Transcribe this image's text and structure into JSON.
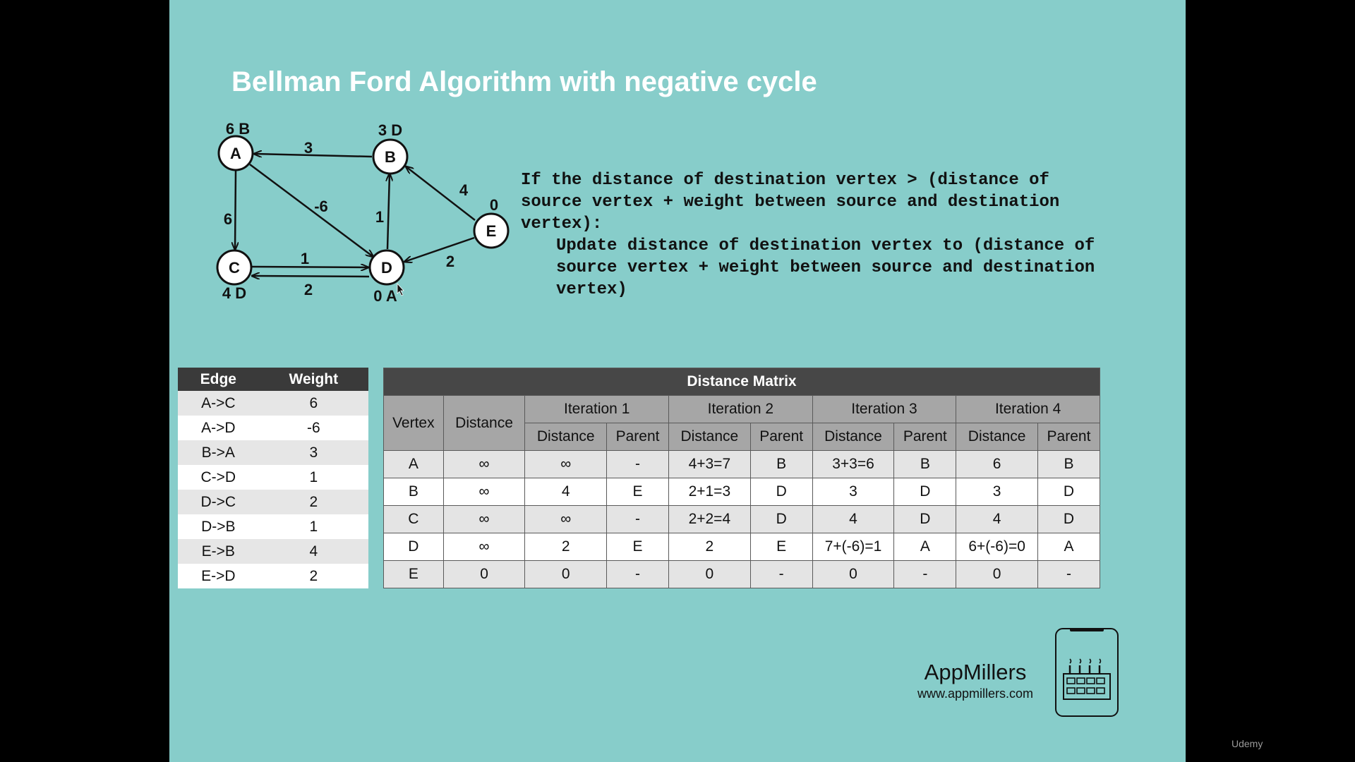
{
  "title": "Bellman Ford Algorithm with negative cycle",
  "graph": {
    "nodes": [
      {
        "id": "A",
        "label": "A",
        "annotation": "6 B"
      },
      {
        "id": "B",
        "label": "B",
        "annotation": "3 D"
      },
      {
        "id": "C",
        "label": "C",
        "annotation": "4 D"
      },
      {
        "id": "D",
        "label": "D",
        "annotation": "0 A"
      },
      {
        "id": "E",
        "label": "E",
        "annotation": "0"
      }
    ],
    "edges": [
      {
        "from": "B",
        "to": "A",
        "weight": "3"
      },
      {
        "from": "A",
        "to": "C",
        "weight": "6"
      },
      {
        "from": "A",
        "to": "D",
        "weight": "-6"
      },
      {
        "from": "D",
        "to": "B",
        "weight": "1"
      },
      {
        "from": "E",
        "to": "B",
        "weight": "4"
      },
      {
        "from": "E",
        "to": "D",
        "weight": "2"
      },
      {
        "from": "C",
        "to": "D",
        "weight": "1"
      },
      {
        "from": "D",
        "to": "C",
        "weight": "2"
      }
    ]
  },
  "rule": {
    "line1": "If the distance of destination vertex > (distance of",
    "line2": "source vertex + weight between source and destination",
    "line3": "vertex):",
    "line4": "Update distance of destination vertex to (distance of",
    "line5": "source vertex + weight between source and destination",
    "line6": "vertex)"
  },
  "edge_table": {
    "headers": [
      "Edge",
      "Weight"
    ],
    "rows": [
      [
        "A->C",
        "6"
      ],
      [
        "A->D",
        "-6"
      ],
      [
        "B->A",
        "3"
      ],
      [
        "C->D",
        "1"
      ],
      [
        "D->C",
        "2"
      ],
      [
        "D->B",
        "1"
      ],
      [
        "E->B",
        "4"
      ],
      [
        "E->D",
        "2"
      ]
    ]
  },
  "matrix": {
    "title": "Distance Matrix",
    "vertex_header": "Vertex",
    "distance_header": "Distance",
    "iterations": [
      "Iteration 1",
      "Iteration 2",
      "Iteration 3",
      "Iteration 4"
    ],
    "sub_distance": "Distance",
    "sub_parent": "Parent",
    "rows": [
      [
        "A",
        "∞",
        "∞",
        "-",
        "4+3=7",
        "B",
        "3+3=6",
        "B",
        "6",
        "B"
      ],
      [
        "B",
        "∞",
        "4",
        "E",
        "2+1=3",
        "D",
        "3",
        "D",
        "3",
        "D"
      ],
      [
        "C",
        "∞",
        "∞",
        "-",
        "2+2=4",
        "D",
        "4",
        "D",
        "4",
        "D"
      ],
      [
        "D",
        "∞",
        "2",
        "E",
        "2",
        "E",
        "7+(-6)=1",
        "A",
        "6+(-6)=0",
        "A"
      ],
      [
        "E",
        "0",
        "0",
        "-",
        "0",
        "-",
        "0",
        "-",
        "0",
        "-"
      ]
    ]
  },
  "brand": {
    "name": "AppMillers",
    "url": "www.appmillers.com",
    "logo_icon": "factory-phone-icon"
  },
  "watermark": "Udemy",
  "colors": {
    "slide_bg": "#87CDCA",
    "header_dark": "#474747",
    "header_mid": "#a6a6a6"
  }
}
